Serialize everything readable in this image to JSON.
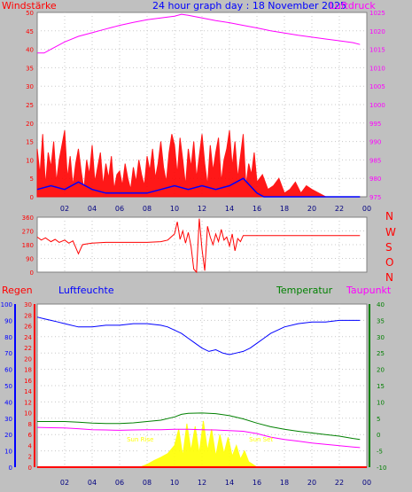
{
  "chart_data": [
    {
      "type": "line",
      "title": "24 hour graph day : 18 November 2025",
      "left_axis_label": "Windstärke",
      "right_axis_label": "Luftdruck",
      "x_range": [
        0,
        24
      ],
      "x_ticks": [
        "02",
        "04",
        "06",
        "08",
        "10",
        "12",
        "14",
        "16",
        "18",
        "20",
        "22",
        "00"
      ],
      "ylim_left": [
        0,
        50
      ],
      "y_ticks_left": [
        "0",
        "5",
        "10",
        "15",
        "20",
        "25",
        "30",
        "35",
        "40",
        "45",
        "50"
      ],
      "ylim_right": [
        975,
        1025
      ],
      "y_ticks_right": [
        "975",
        "980",
        "985",
        "990",
        "995",
        "1000",
        "1005",
        "1010",
        "1015",
        "1020",
        "1025"
      ],
      "grid": true,
      "series": [
        {
          "name": "Luftdruck",
          "axis": "right",
          "color": "#ff00ff",
          "x": [
            0,
            0.5,
            1,
            2,
            3,
            4,
            5,
            6,
            7,
            8,
            9,
            10,
            10.5,
            11,
            12,
            13,
            14,
            15,
            16,
            17,
            18,
            19,
            20,
            21,
            22,
            23,
            23.5
          ],
          "y": [
            1014,
            1014,
            1015,
            1017,
            1018.5,
            1019.5,
            1020.5,
            1021.5,
            1022.3,
            1023,
            1023.5,
            1024,
            1024.5,
            1024.2,
            1023.5,
            1022.8,
            1022.2,
            1021.5,
            1020.8,
            1020,
            1019.4,
            1018.8,
            1018.3,
            1017.8,
            1017.3,
            1016.8,
            1016.3
          ]
        },
        {
          "name": "Windstärke (Böen)",
          "axis": "left",
          "color": "#ff0000",
          "x": [
            0,
            0.2,
            0.4,
            0.6,
            0.8,
            1,
            1.2,
            1.4,
            1.6,
            1.8,
            2,
            2.2,
            2.4,
            2.6,
            2.8,
            3,
            3.2,
            3.4,
            3.6,
            3.8,
            4,
            4.2,
            4.4,
            4.6,
            4.8,
            5,
            5.2,
            5.4,
            5.6,
            5.8,
            6,
            6.2,
            6.4,
            6.6,
            6.8,
            7,
            7.2,
            7.4,
            7.6,
            7.8,
            8,
            8.2,
            8.4,
            8.6,
            8.8,
            9,
            9.2,
            9.4,
            9.6,
            9.8,
            10,
            10.2,
            10.4,
            10.6,
            10.8,
            11,
            11.2,
            11.4,
            11.6,
            11.8,
            12,
            12.2,
            12.4,
            12.6,
            12.8,
            13,
            13.2,
            13.4,
            13.6,
            13.8,
            14,
            14.2,
            14.4,
            14.6,
            14.8,
            15,
            15.2,
            15.4,
            15.6,
            15.8,
            16,
            16.4,
            16.8,
            17.2,
            17.6,
            18,
            18.4,
            18.8,
            19.2,
            19.6,
            20,
            21,
            22,
            23,
            23.5
          ],
          "y": [
            13,
            6,
            17,
            3,
            12,
            8,
            15,
            4,
            10,
            14,
            18,
            5,
            11,
            3,
            9,
            13,
            7,
            2,
            10,
            6,
            14,
            4,
            8,
            12,
            3,
            9,
            5,
            11,
            2,
            6,
            7,
            3,
            9,
            5,
            2,
            8,
            4,
            10,
            6,
            3,
            11,
            7,
            13,
            5,
            9,
            15,
            8,
            4,
            12,
            17,
            14,
            6,
            16,
            10,
            3,
            13,
            8,
            15,
            5,
            11,
            17,
            9,
            3,
            14,
            7,
            12,
            16,
            4,
            10,
            13,
            18,
            8,
            15,
            5,
            11,
            17,
            3,
            9,
            6,
            12,
            4,
            6,
            2,
            3,
            5,
            1,
            2,
            4,
            1,
            3,
            2,
            0,
            0,
            0,
            0
          ]
        },
        {
          "name": "Windstärke (Mittel)",
          "axis": "left",
          "color": "#0000ff",
          "x": [
            0,
            1,
            2,
            3,
            4,
            5,
            6,
            7,
            8,
            9,
            10,
            11,
            12,
            13,
            14,
            15,
            16,
            16.5,
            18,
            20,
            22,
            23.5
          ],
          "y": [
            2,
            3,
            2,
            4,
            2,
            1,
            1,
            1,
            1,
            2,
            3,
            2,
            3,
            2,
            3,
            5,
            1,
            0,
            0,
            0,
            0,
            0
          ]
        }
      ]
    },
    {
      "type": "line",
      "right_axis_label": [
        "N",
        "W",
        "S",
        "O",
        "N"
      ],
      "x_range": [
        0,
        24
      ],
      "ylim": [
        0,
        360
      ],
      "y_ticks": [
        "0",
        "90",
        "180",
        "270",
        "360"
      ],
      "grid": true,
      "series": [
        {
          "name": "Windrichtung",
          "color": "#ff0000",
          "x": [
            0,
            0.3,
            0.6,
            1,
            1.3,
            1.6,
            2,
            2.3,
            2.6,
            3,
            3.3,
            3.6,
            4,
            5,
            6,
            7,
            8,
            9,
            9.5,
            10,
            10.2,
            10.4,
            10.6,
            10.8,
            11,
            11.2,
            11.4,
            11.6,
            11.8,
            12,
            12.2,
            12.4,
            12.6,
            12.8,
            13,
            13.2,
            13.4,
            13.6,
            13.8,
            14,
            14.2,
            14.4,
            14.6,
            14.8,
            15,
            15.5,
            16,
            18,
            20,
            22,
            23.5
          ],
          "y": [
            230,
            210,
            225,
            200,
            215,
            195,
            210,
            190,
            205,
            120,
            180,
            185,
            190,
            195,
            195,
            195,
            195,
            200,
            210,
            250,
            330,
            215,
            270,
            190,
            260,
            170,
            20,
            0,
            350,
            150,
            10,
            300,
            230,
            180,
            250,
            200,
            280,
            210,
            230,
            170,
            250,
            140,
            220,
            200,
            240,
            240,
            240,
            240,
            240,
            240,
            240
          ]
        }
      ]
    },
    {
      "type": "line",
      "legend": [
        "Regen",
        "Luftfeuchte",
        "Temperatur",
        "Taupunkt"
      ],
      "x_range": [
        0,
        24
      ],
      "x_ticks": [
        "02",
        "04",
        "06",
        "08",
        "10",
        "12",
        "14",
        "16",
        "18",
        "20",
        "22",
        "00"
      ],
      "y_ticks_luftfeuchte": [
        "0",
        "10",
        "20",
        "30",
        "40",
        "50",
        "60",
        "70",
        "80",
        "90",
        "100"
      ],
      "y_ticks_regen": [
        "0",
        "2",
        "4",
        "6",
        "8",
        "10",
        "12",
        "14",
        "16",
        "18",
        "20",
        "22",
        "24",
        "26",
        "28",
        "30"
      ],
      "ylim_temperatur": [
        -10,
        40
      ],
      "y_ticks_temperatur": [
        "-10",
        "-5",
        "0",
        "5",
        "10",
        "15",
        "20",
        "25",
        "30",
        "35",
        "40"
      ],
      "annotations": [
        "Sun Rise",
        "Sun Set"
      ],
      "sun_rise_x": 7.5,
      "sun_set_x": 16.3,
      "grid": true,
      "series": [
        {
          "name": "Luftfeuchte",
          "axis": "luftfeuchte",
          "color": "#0000ff",
          "x": [
            0,
            0.5,
            1,
            1.5,
            2,
            3,
            4,
            5,
            6,
            7,
            8,
            9,
            9.5,
            10,
            10.5,
            11,
            11.5,
            12,
            12.5,
            13,
            13.5,
            14,
            14.5,
            15,
            15.5,
            16,
            16.5,
            17,
            18,
            19,
            20,
            21,
            22,
            23,
            23.5
          ],
          "y": [
            92,
            91,
            90,
            89,
            88,
            86,
            86,
            87,
            87,
            88,
            88,
            87,
            86,
            84,
            82,
            79,
            76,
            73,
            71,
            72,
            70,
            69,
            70,
            71,
            73,
            76,
            79,
            82,
            86,
            88,
            89,
            89,
            90,
            90,
            90
          ]
        },
        {
          "name": "Temperatur",
          "axis": "temperatur",
          "color": "#008000",
          "x": [
            0,
            1,
            2,
            3,
            4,
            5,
            6,
            7,
            8,
            9,
            10,
            10.5,
            11,
            12,
            13,
            14,
            15,
            16,
            17,
            18,
            19,
            20,
            21,
            22,
            23,
            23.5
          ],
          "y": [
            4,
            4,
            4,
            3.8,
            3.5,
            3.4,
            3.4,
            3.6,
            4,
            4.4,
            5.4,
            6.2,
            6.5,
            6.6,
            6.4,
            5.8,
            4.8,
            3.5,
            2.4,
            1.6,
            1,
            0.5,
            0,
            -0.5,
            -1.2,
            -1.5
          ]
        },
        {
          "name": "Taupunkt",
          "axis": "temperatur",
          "color": "#ff00ff",
          "x": [
            0,
            1,
            2,
            3,
            4,
            5,
            6,
            7,
            8,
            9,
            10,
            11,
            12,
            13,
            14,
            15,
            16,
            17,
            18,
            19,
            20,
            21,
            22,
            23,
            23.5
          ],
          "y": [
            2.2,
            2.1,
            2,
            1.8,
            1.5,
            1.4,
            1.3,
            1.4,
            1.5,
            1.5,
            1.6,
            1.6,
            1.5,
            1.4,
            1.2,
            1,
            0.3,
            -0.8,
            -1.5,
            -2,
            -2.6,
            -3,
            -3.4,
            -3.8,
            -4
          ]
        },
        {
          "name": "Sonne",
          "axis": "regen",
          "color": "#ffff00",
          "x": [
            7.5,
            8,
            8.5,
            9,
            9.5,
            10,
            10.3,
            10.6,
            10.9,
            11.2,
            11.5,
            11.8,
            12.1,
            12.4,
            12.7,
            13,
            13.3,
            13.6,
            13.9,
            14.2,
            14.5,
            14.8,
            15.1,
            15.4,
            15.7,
            16,
            16.3
          ],
          "y": [
            0,
            0.5,
            1.2,
            1.8,
            2.5,
            4,
            7,
            2,
            8,
            3,
            7.5,
            2.5,
            8.5,
            3,
            7,
            2,
            6,
            2.5,
            5.5,
            2,
            4,
            1.5,
            3,
            1,
            0.5,
            0,
            0
          ]
        },
        {
          "name": "Regen",
          "axis": "regen",
          "color": "#ff0000",
          "x": [
            0,
            24
          ],
          "y": [
            0,
            0
          ]
        }
      ]
    }
  ]
}
